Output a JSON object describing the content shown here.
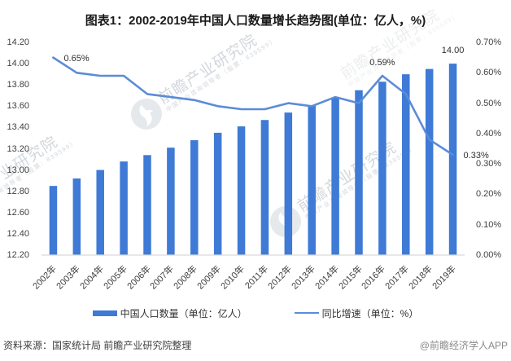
{
  "title": "图表1：2002-2019年中国人口数量增长趋势图(单位：亿人，%)",
  "chart_data": {
    "type": "bar+line combo",
    "categories": [
      "2002年",
      "2003年",
      "2004年",
      "2005年",
      "2006年",
      "2007年",
      "2008年",
      "2009年",
      "2010年",
      "2011年",
      "2012年",
      "2013年",
      "2014年",
      "2015年",
      "2016年",
      "2017年",
      "2018年",
      "2019年"
    ],
    "series": [
      {
        "name": "中国人口数量（单位：亿人）",
        "type": "bar",
        "axis": "left",
        "color": "#3E7AD6",
        "values": [
          12.85,
          12.92,
          13.0,
          13.08,
          13.14,
          13.21,
          13.28,
          13.35,
          13.41,
          13.47,
          13.54,
          13.61,
          13.68,
          13.75,
          13.83,
          13.9,
          13.95,
          14.0
        ]
      },
      {
        "name": "同比增速（单位：%）",
        "type": "line",
        "axis": "right",
        "color": "#5B8CD8",
        "values": [
          0.65,
          0.6,
          0.59,
          0.59,
          0.53,
          0.52,
          0.51,
          0.49,
          0.48,
          0.48,
          0.5,
          0.49,
          0.52,
          0.5,
          0.59,
          0.53,
          0.38,
          0.33
        ]
      }
    ],
    "left_axis": {
      "min": 12.2,
      "max": 14.2,
      "step": 0.2,
      "ticks": [
        "14.20",
        "14.00",
        "13.80",
        "13.60",
        "13.40",
        "13.20",
        "13.00",
        "12.80",
        "12.60",
        "12.40",
        "12.20"
      ]
    },
    "right_axis": {
      "min": 0.0,
      "max": 0.7,
      "step": 0.1,
      "ticks": [
        "0.70%",
        "0.60%",
        "0.50%",
        "0.40%",
        "0.30%",
        "0.20%",
        "0.10%",
        "0.00%"
      ]
    },
    "annotations": [
      {
        "text": "0.65%",
        "series": 1,
        "index": 0,
        "position": "right"
      },
      {
        "text": "0.59%",
        "series": 1,
        "index": 14,
        "position": "above"
      },
      {
        "text": "0.33%",
        "series": 1,
        "index": 17,
        "position": "right"
      },
      {
        "text": "14.00",
        "series": 0,
        "index": 17,
        "position": "above"
      }
    ],
    "grid": false,
    "legend_position": "bottom",
    "xlabel": "",
    "ylabel_left": "亿人",
    "ylabel_right": "%"
  },
  "legend": {
    "items": [
      {
        "label": "中国人口数量（单位：亿人）",
        "swatch": "bar",
        "color": "#3E7AD6"
      },
      {
        "label": "同比增速（单位：%）",
        "swatch": "line",
        "color": "#5B8CD8"
      }
    ]
  },
  "footer": {
    "source": "资料来源：国家统计局 前瞻产业研究院整理",
    "brand": "@前瞻经济学人APP"
  },
  "watermark": {
    "main": "前瞻产业研究院",
    "sub": "中国产业咨询领导者（股票：839599）",
    "logo": "qianzhan-phoenix-logo",
    "color": "#96a2af"
  }
}
